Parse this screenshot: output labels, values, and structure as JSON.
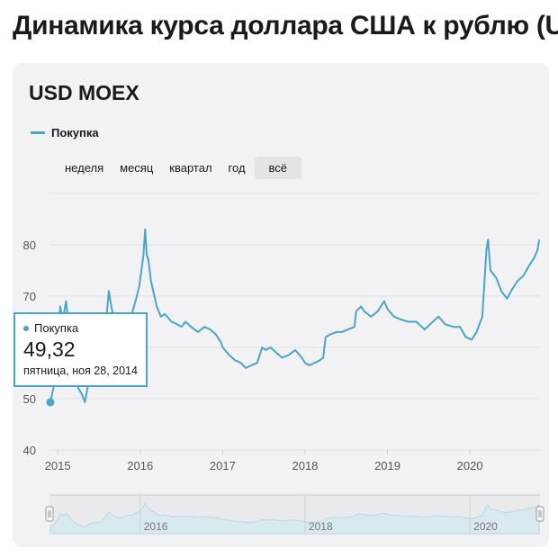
{
  "page": {
    "title": "Динамика курса доллара США к рублю (U"
  },
  "card": {
    "title": "USD MOEX"
  },
  "legend": {
    "series_label": "Покупка"
  },
  "periods": [
    {
      "label": "неделя",
      "active": false
    },
    {
      "label": "месяц",
      "active": false
    },
    {
      "label": "квартал",
      "active": false
    },
    {
      "label": "год",
      "active": false
    },
    {
      "label": "всё",
      "active": true
    }
  ],
  "tooltip": {
    "series": "Покупка",
    "value": "49,32",
    "date": "пятница, ноя 28, 2014"
  },
  "colors": {
    "series": "#4aa5c8",
    "grid": "#e2e2e2",
    "axis_text": "#555555"
  },
  "chart_data": {
    "type": "line",
    "series": [
      {
        "name": "Покупка",
        "points": [
          [
            2014.91,
            49.3
          ],
          [
            2014.96,
            53
          ],
          [
            2015.0,
            60
          ],
          [
            2015.03,
            68
          ],
          [
            2015.06,
            65
          ],
          [
            2015.1,
            69
          ],
          [
            2015.13,
            65
          ],
          [
            2015.17,
            60
          ],
          [
            2015.21,
            56
          ],
          [
            2015.25,
            52
          ],
          [
            2015.29,
            51
          ],
          [
            2015.33,
            49.3
          ],
          [
            2015.37,
            53
          ],
          [
            2015.42,
            55
          ],
          [
            2015.46,
            55.5
          ],
          [
            2015.5,
            56
          ],
          [
            2015.54,
            58
          ],
          [
            2015.58,
            64
          ],
          [
            2015.62,
            71
          ],
          [
            2015.65,
            68
          ],
          [
            2015.7,
            64
          ],
          [
            2015.75,
            63
          ],
          [
            2015.8,
            64
          ],
          [
            2015.85,
            66
          ],
          [
            2015.9,
            66.5
          ],
          [
            2015.96,
            70
          ],
          [
            2015.99,
            72
          ],
          [
            2016.04,
            78
          ],
          [
            2016.06,
            83
          ],
          [
            2016.08,
            78
          ],
          [
            2016.1,
            77
          ],
          [
            2016.13,
            73
          ],
          [
            2016.2,
            68
          ],
          [
            2016.25,
            66
          ],
          [
            2016.3,
            66.5
          ],
          [
            2016.38,
            65
          ],
          [
            2016.45,
            64.5
          ],
          [
            2016.5,
            64
          ],
          [
            2016.55,
            65
          ],
          [
            2016.62,
            64
          ],
          [
            2016.7,
            63
          ],
          [
            2016.78,
            64
          ],
          [
            2016.85,
            63.5
          ],
          [
            2016.92,
            62.5
          ],
          [
            2016.98,
            61
          ],
          [
            2017.0,
            60
          ],
          [
            2017.08,
            58.5
          ],
          [
            2017.15,
            57.5
          ],
          [
            2017.22,
            57
          ],
          [
            2017.28,
            56
          ],
          [
            2017.35,
            56.5
          ],
          [
            2017.42,
            57
          ],
          [
            2017.48,
            60
          ],
          [
            2017.52,
            59.5
          ],
          [
            2017.58,
            60
          ],
          [
            2017.65,
            59
          ],
          [
            2017.72,
            58
          ],
          [
            2017.8,
            58.5
          ],
          [
            2017.88,
            59.5
          ],
          [
            2017.96,
            58
          ],
          [
            2018.0,
            57
          ],
          [
            2018.05,
            56.5
          ],
          [
            2018.12,
            57
          ],
          [
            2018.18,
            57.5
          ],
          [
            2018.22,
            58
          ],
          [
            2018.25,
            62
          ],
          [
            2018.3,
            62.5
          ],
          [
            2018.38,
            63
          ],
          [
            2018.45,
            63
          ],
          [
            2018.52,
            63.5
          ],
          [
            2018.6,
            64
          ],
          [
            2018.62,
            67
          ],
          [
            2018.68,
            68
          ],
          [
            2018.72,
            67
          ],
          [
            2018.8,
            66
          ],
          [
            2018.88,
            67
          ],
          [
            2018.96,
            69
          ],
          [
            2019.0,
            67.5
          ],
          [
            2019.08,
            66
          ],
          [
            2019.15,
            65.5
          ],
          [
            2019.25,
            65
          ],
          [
            2019.35,
            65
          ],
          [
            2019.45,
            63.5
          ],
          [
            2019.55,
            65
          ],
          [
            2019.62,
            66
          ],
          [
            2019.7,
            64.5
          ],
          [
            2019.8,
            64
          ],
          [
            2019.88,
            64
          ],
          [
            2019.95,
            62
          ],
          [
            2020.02,
            61.5
          ],
          [
            2020.08,
            63
          ],
          [
            2020.15,
            66
          ],
          [
            2020.2,
            79
          ],
          [
            2020.22,
            81
          ],
          [
            2020.25,
            75
          ],
          [
            2020.32,
            73.5
          ],
          [
            2020.38,
            71
          ],
          [
            2020.45,
            69.5
          ],
          [
            2020.5,
            71
          ],
          [
            2020.58,
            73
          ],
          [
            2020.65,
            74
          ],
          [
            2020.72,
            76
          ],
          [
            2020.78,
            77.5
          ],
          [
            2020.82,
            79
          ],
          [
            2020.84,
            81
          ]
        ]
      }
    ],
    "x_ticks": [
      "2015",
      "2016",
      "2017",
      "2018",
      "2019",
      "2020"
    ],
    "y_ticks": [
      "40",
      "50",
      "60",
      "70",
      "80"
    ],
    "ylim": [
      40,
      90
    ],
    "xlim": [
      2014.9,
      2020.85
    ],
    "grid": true,
    "navigator": {
      "x_ticks": [
        "2016",
        "2018",
        "2020"
      ]
    }
  }
}
